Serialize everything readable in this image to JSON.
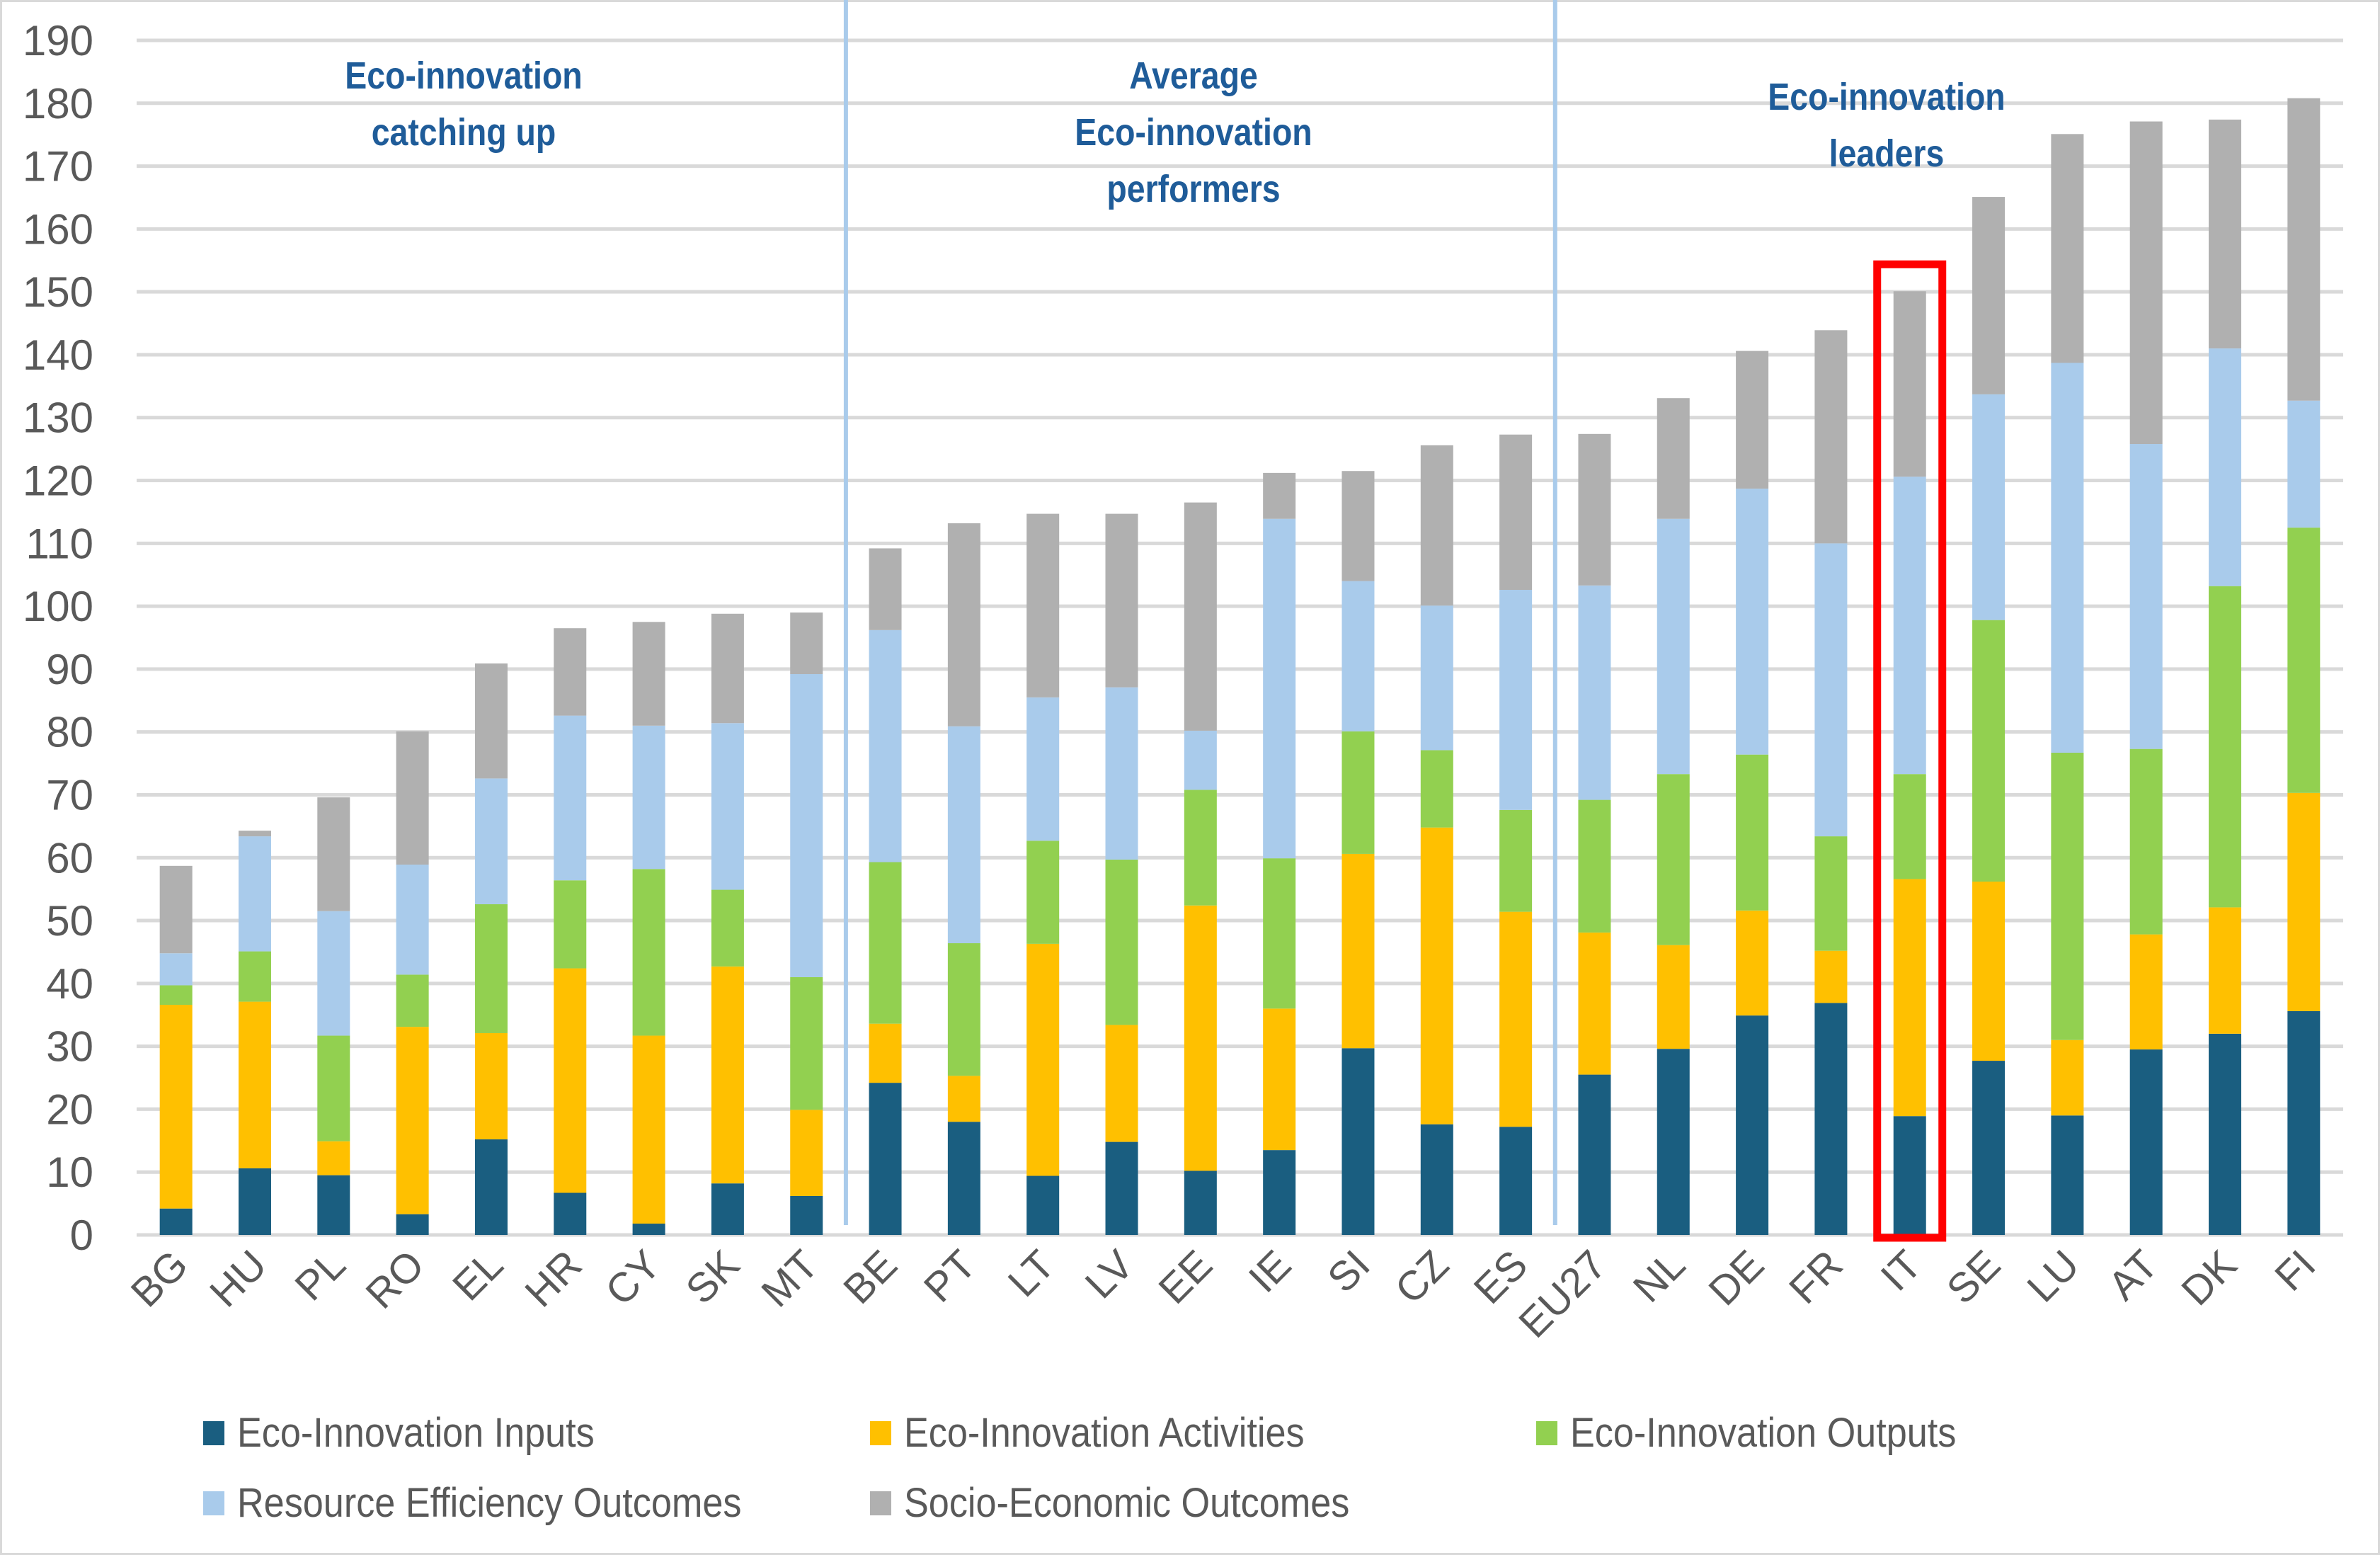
{
  "chart_data": {
    "type": "bar",
    "stacked": true,
    "title": "",
    "xlabel": "",
    "ylabel": "",
    "ylim": [
      0,
      190
    ],
    "yticks": [
      0,
      10,
      20,
      30,
      40,
      50,
      60,
      70,
      80,
      90,
      100,
      110,
      120,
      130,
      140,
      150,
      160,
      170,
      180,
      190
    ],
    "grid": true,
    "legend_position": "bottom",
    "categories": [
      "BG",
      "HU",
      "PL",
      "RO",
      "EL",
      "HR",
      "CY",
      "SK",
      "MT",
      "BE",
      "PT",
      "LT",
      "LV",
      "EE",
      "IE",
      "SI",
      "CZ",
      "ES",
      "EU27",
      "NL",
      "DE",
      "FR",
      "IT",
      "SE",
      "LU",
      "AT",
      "DK",
      "FI"
    ],
    "series": [
      {
        "name": "Eco-Innovation Inputs",
        "color": "#1a5e80",
        "values": [
          4.2,
          10.6,
          9.5,
          3.3,
          15.2,
          6.7,
          1.8,
          8.2,
          6.2,
          24.2,
          18.0,
          9.4,
          14.8,
          10.2,
          13.5,
          29.7,
          17.6,
          17.2,
          25.5,
          29.6,
          34.9,
          36.9,
          18.9,
          27.7,
          19.0,
          29.5,
          32.0,
          35.6
        ]
      },
      {
        "name": "Eco-Innovation Activities",
        "color": "#ffc000",
        "values": [
          32.4,
          26.5,
          5.4,
          29.8,
          16.9,
          35.7,
          29.9,
          34.5,
          13.7,
          9.4,
          7.3,
          36.9,
          18.6,
          42.2,
          22.5,
          30.9,
          47.2,
          34.2,
          22.6,
          16.5,
          16.7,
          8.3,
          37.7,
          28.5,
          12.0,
          18.3,
          20.1,
          34.7
        ]
      },
      {
        "name": "Eco-Innovation Outputs",
        "color": "#92d050",
        "values": [
          3.1,
          8.0,
          16.8,
          8.3,
          20.5,
          14.0,
          26.5,
          12.2,
          21.1,
          25.7,
          21.1,
          16.4,
          26.3,
          18.4,
          23.9,
          19.5,
          12.3,
          16.2,
          21.1,
          27.2,
          24.8,
          18.2,
          16.7,
          41.6,
          45.7,
          29.5,
          51.1,
          42.2
        ]
      },
      {
        "name": "Resource Efficiency Outcomes",
        "color": "#a9cbeb",
        "values": [
          5.1,
          18.3,
          19.8,
          17.5,
          20.0,
          26.2,
          22.8,
          26.5,
          48.2,
          36.9,
          34.5,
          22.8,
          27.4,
          9.4,
          54.0,
          23.9,
          23.0,
          35.0,
          34.1,
          40.6,
          42.3,
          46.6,
          47.3,
          35.9,
          62.0,
          48.5,
          37.8,
          20.2
        ]
      },
      {
        "name": "Socio-Economic Outcomes",
        "color": "#b0b0b0",
        "values": [
          13.9,
          0.9,
          18.1,
          21.2,
          18.3,
          13.9,
          16.5,
          17.4,
          9.8,
          13.0,
          32.3,
          29.2,
          27.6,
          36.3,
          7.3,
          17.5,
          25.5,
          24.7,
          24.1,
          19.2,
          21.9,
          33.9,
          29.5,
          31.4,
          36.4,
          51.3,
          36.4,
          48.1
        ]
      }
    ],
    "totals": [
      58.7,
      64.3,
      69.6,
      80.1,
      90.9,
      96.5,
      97.5,
      98.8,
      99.0,
      109.2,
      113.2,
      114.7,
      114.7,
      116.5,
      121.2,
      121.5,
      125.6,
      127.3,
      127.4,
      133.1,
      140.6,
      143.9,
      150.1,
      165.1,
      175.1,
      177.1,
      177.4,
      180.8
    ],
    "groups": [
      {
        "label_lines": [
          "Eco-innovation",
          "catching up"
        ],
        "categories": [
          "BG",
          "HU",
          "PL",
          "RO",
          "EL",
          "HR",
          "CY",
          "SK",
          "MT"
        ]
      },
      {
        "label_lines": [
          "Average",
          "Eco-innovation",
          "performers"
        ],
        "categories": [
          "BE",
          "PT",
          "LT",
          "LV",
          "EE",
          "IE",
          "SI",
          "CZ",
          "ES"
        ]
      },
      {
        "label_lines": [
          "Eco-innovation",
          "leaders"
        ],
        "categories": [
          "EU27",
          "NL",
          "DE",
          "FR",
          "IT",
          "SE",
          "LU",
          "AT",
          "DK",
          "FI"
        ]
      }
    ],
    "highlighted_category": "IT",
    "highlight_color": "#ff0000",
    "group_label_color": "#1f5c99"
  }
}
